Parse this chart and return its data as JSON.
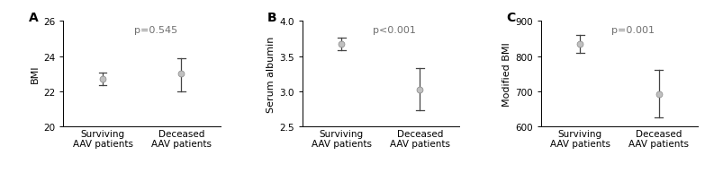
{
  "panels": [
    {
      "label": "A",
      "ylabel": "BMI",
      "pvalue": "p=0.545",
      "ylim": [
        20,
        26
      ],
      "yticks": [
        20,
        22,
        24,
        26
      ],
      "groups": [
        "Surviving\nAAV patients",
        "Deceased\nAAV patients"
      ],
      "means": [
        22.7,
        23.0
      ],
      "ci_low": [
        22.35,
        22.0
      ],
      "ci_high": [
        23.05,
        23.9
      ]
    },
    {
      "label": "B",
      "ylabel": "Serum albumin",
      "pvalue": "p<0.001",
      "ylim": [
        2.5,
        4.0
      ],
      "yticks": [
        2.5,
        3.0,
        3.5,
        4.0
      ],
      "groups": [
        "Surviving\nAAV patients",
        "Deceased\nAAV patients"
      ],
      "means": [
        3.67,
        3.02
      ],
      "ci_low": [
        3.58,
        2.73
      ],
      "ci_high": [
        3.76,
        3.33
      ]
    },
    {
      "label": "C",
      "ylabel": "Modified BMI",
      "pvalue": "p=0.001",
      "ylim": [
        600,
        900
      ],
      "yticks": [
        600,
        700,
        800,
        900
      ],
      "groups": [
        "Surviving\nAAV patients",
        "Deceased\nAAV patients"
      ],
      "means": [
        835,
        693
      ],
      "ci_low": [
        808,
        627
      ],
      "ci_high": [
        860,
        762
      ]
    }
  ],
  "dot_color": "#c0c0c0",
  "dot_edge_color": "#888888",
  "line_color": "#444444",
  "dot_size": 5,
  "pvalue_color": "#707070",
  "ylabel_fontsize": 8,
  "tick_fontsize": 7.5,
  "pvalue_fontsize": 8,
  "panel_label_fontsize": 10,
  "xticklabel_fontsize": 7.5
}
